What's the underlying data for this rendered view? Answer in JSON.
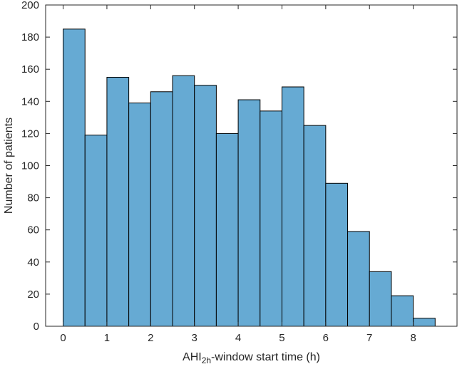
{
  "chart_data": {
    "type": "bar",
    "subtype": "histogram",
    "bin_edges": [
      0,
      0.5,
      1,
      1.5,
      2,
      2.5,
      3,
      3.5,
      4,
      4.5,
      5,
      5.5,
      6,
      6.5,
      7,
      7.5,
      8,
      8.5
    ],
    "values": [
      185,
      119,
      155,
      139,
      146,
      156,
      150,
      120,
      141,
      134,
      149,
      125,
      89,
      59,
      34,
      19,
      5
    ],
    "xlabel": {
      "main": "AHI",
      "subscript": "2h",
      "rest": "-window start time (h)"
    },
    "ylabel": "Number of patients",
    "xlim": [
      -0.4,
      9
    ],
    "ylim": [
      0,
      200
    ],
    "xticks": [
      0,
      1,
      2,
      3,
      4,
      5,
      6,
      7,
      8
    ],
    "yticks": [
      0,
      20,
      40,
      60,
      80,
      100,
      120,
      140,
      160,
      180,
      200
    ],
    "grid": false,
    "bar_color": "#66aad3",
    "edge_color": "#000000"
  }
}
